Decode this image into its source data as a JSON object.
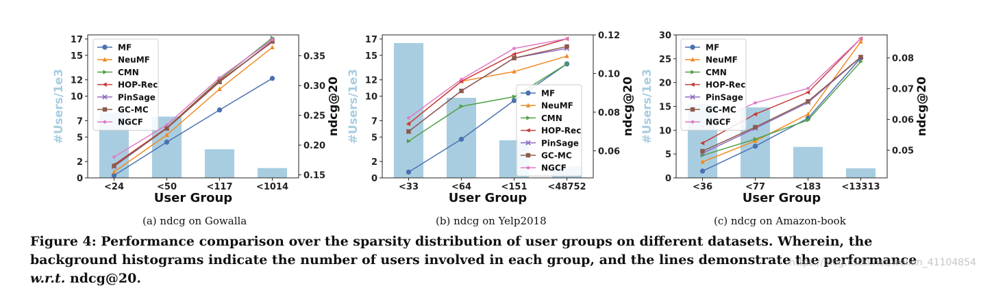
{
  "chart_data": [
    {
      "type": "bar+line",
      "title": "",
      "subcaption": "(a)  ndcg on Gowalla",
      "xlabel": "User Group",
      "ylabel_left": "#Users/1e3",
      "ylabel_right": "ndcg@20",
      "categories": [
        "<24",
        "<50",
        "<117",
        "<1014"
      ],
      "bars": [
        8.0,
        7.5,
        3.5,
        1.2
      ],
      "ylim_left": [
        0,
        17.5
      ],
      "yticks_left": [
        "0",
        "2",
        "5",
        "7",
        "10",
        "12",
        "15",
        "17"
      ],
      "ylim_right": [
        0.145,
        0.385
      ],
      "yticks_right": [
        "0.15",
        "0.20",
        "0.25",
        "0.30",
        "0.35"
      ],
      "legend": "top-left",
      "series": [
        {
          "name": "MF",
          "color": "#4a72b0",
          "marker": "circle",
          "values": [
            0.149,
            0.205,
            0.259,
            0.312
          ]
        },
        {
          "name": "NeuMF",
          "color": "#f08a23",
          "marker": "triangle",
          "values": [
            0.155,
            0.217,
            0.294,
            0.364
          ]
        },
        {
          "name": "CMN",
          "color": "#52a047",
          "marker": "tri-right",
          "values": [
            0.165,
            0.229,
            0.31,
            0.38
          ]
        },
        {
          "name": "HOP-Rec",
          "color": "#c63b3b",
          "marker": "tri-left",
          "values": [
            0.167,
            0.229,
            0.308,
            0.373
          ]
        },
        {
          "name": "PinSage",
          "color": "#8f6bbf",
          "marker": "x",
          "values": [
            0.164,
            0.228,
            0.306,
            0.375
          ]
        },
        {
          "name": "GC-MC",
          "color": "#8c5a4c",
          "marker": "square",
          "values": [
            0.165,
            0.228,
            0.306,
            0.374
          ]
        },
        {
          "name": "NGCF",
          "color": "#e178c5",
          "marker": "dot",
          "values": [
            0.18,
            0.234,
            0.313,
            0.377
          ]
        }
      ]
    },
    {
      "type": "bar+line",
      "title": "",
      "subcaption": "(b)  ndcg on Yelp2018",
      "xlabel": "User Group",
      "ylabel_left": "#Users/1e3",
      "ylabel_right": "ndcg@20",
      "categories": [
        "<33",
        "<64",
        "<151",
        "<48752"
      ],
      "bars": [
        16.5,
        9.8,
        4.6,
        1.4
      ],
      "ylim_left": [
        0,
        17.5
      ],
      "yticks_left": [
        "0",
        "2",
        "5",
        "7",
        "10",
        "12",
        "15",
        "17"
      ],
      "ylim_right": [
        0.046,
        0.12
      ],
      "yticks_right": [
        "0.06",
        "0.08",
        "0.10",
        "0.12"
      ],
      "legend": "center-right",
      "series": [
        {
          "name": "MF",
          "color": "#4a72b0",
          "marker": "circle",
          "values": [
            0.049,
            0.066,
            0.086,
            0.105
          ]
        },
        {
          "name": "NeuMF",
          "color": "#f08a23",
          "marker": "triangle",
          "values": [
            0.074,
            0.096,
            0.101,
            0.109
          ]
        },
        {
          "name": "CMN",
          "color": "#52a047",
          "marker": "tri-right",
          "values": [
            0.065,
            0.083,
            0.088,
            0.105
          ]
        },
        {
          "name": "HOP-Rec",
          "color": "#c63b3b",
          "marker": "tri-left",
          "values": [
            0.074,
            0.096,
            0.11,
            0.118
          ]
        },
        {
          "name": "PinSage",
          "color": "#8f6bbf",
          "marker": "x",
          "values": [
            0.07,
            0.091,
            0.108,
            0.113
          ]
        },
        {
          "name": "GC-MC",
          "color": "#8c5a4c",
          "marker": "square",
          "values": [
            0.07,
            0.091,
            0.108,
            0.114
          ]
        },
        {
          "name": "NGCF",
          "color": "#e178c5",
          "marker": "dot",
          "values": [
            0.077,
            0.097,
            0.113,
            0.118
          ]
        }
      ]
    },
    {
      "type": "bar+line",
      "title": "",
      "subcaption": "(c)  ndcg on Amazon-book",
      "xlabel": "User Group",
      "ylabel_left": "#Users/1e3",
      "ylabel_right": "ndcg@20",
      "categories": [
        "<36",
        "<77",
        "<183",
        "<13313"
      ],
      "bars": [
        15.5,
        14.8,
        6.5,
        2.0
      ],
      "ylim_left": [
        0,
        30
      ],
      "yticks_left": [
        "0",
        "5",
        "10",
        "15",
        "20",
        "25",
        "30"
      ],
      "ylim_right": [
        0.041,
        0.0875
      ],
      "yticks_right": [
        "0.05",
        "0.06",
        "0.07",
        "0.08"
      ],
      "legend": "top-left",
      "series": [
        {
          "name": "MF",
          "color": "#4a72b0",
          "marker": "circle",
          "values": [
            0.0432,
            0.0513,
            0.0604,
            0.08
          ]
        },
        {
          "name": "NeuMF",
          "color": "#f08a23",
          "marker": "triangle",
          "values": [
            0.0462,
            0.053,
            0.0617,
            0.0853
          ]
        },
        {
          "name": "CMN",
          "color": "#52a047",
          "marker": "tri-right",
          "values": [
            0.0483,
            0.0536,
            0.0598,
            0.0788
          ]
        },
        {
          "name": "HOP-Rec",
          "color": "#c63b3b",
          "marker": "tri-left",
          "values": [
            0.0523,
            0.0617,
            0.0688,
            0.0863
          ]
        },
        {
          "name": "PinSage",
          "color": "#8f6bbf",
          "marker": "x",
          "values": [
            0.049,
            0.0571,
            0.0655,
            0.0802
          ]
        },
        {
          "name": "GC-MC",
          "color": "#8c5a4c",
          "marker": "square",
          "values": [
            0.0497,
            0.0575,
            0.0659,
            0.0803
          ]
        },
        {
          "name": "NGCF",
          "color": "#e178c5",
          "marker": "dot",
          "values": [
            0.0577,
            0.0654,
            0.0701,
            0.0863
          ]
        }
      ]
    }
  ],
  "caption": "Figure 4: Performance comparison over the sparsity distribution of user groups on different datasets. Wherein, the background histograms indicate the number of users involved in each group, and the lines demonstrate the performance w.r.t. ndcg@20.",
  "watermark": "https://blog.csdn.net/weixin_41104854",
  "colors": {
    "bar": "#a9cde0",
    "ylabel_left": "#a9cde0"
  }
}
